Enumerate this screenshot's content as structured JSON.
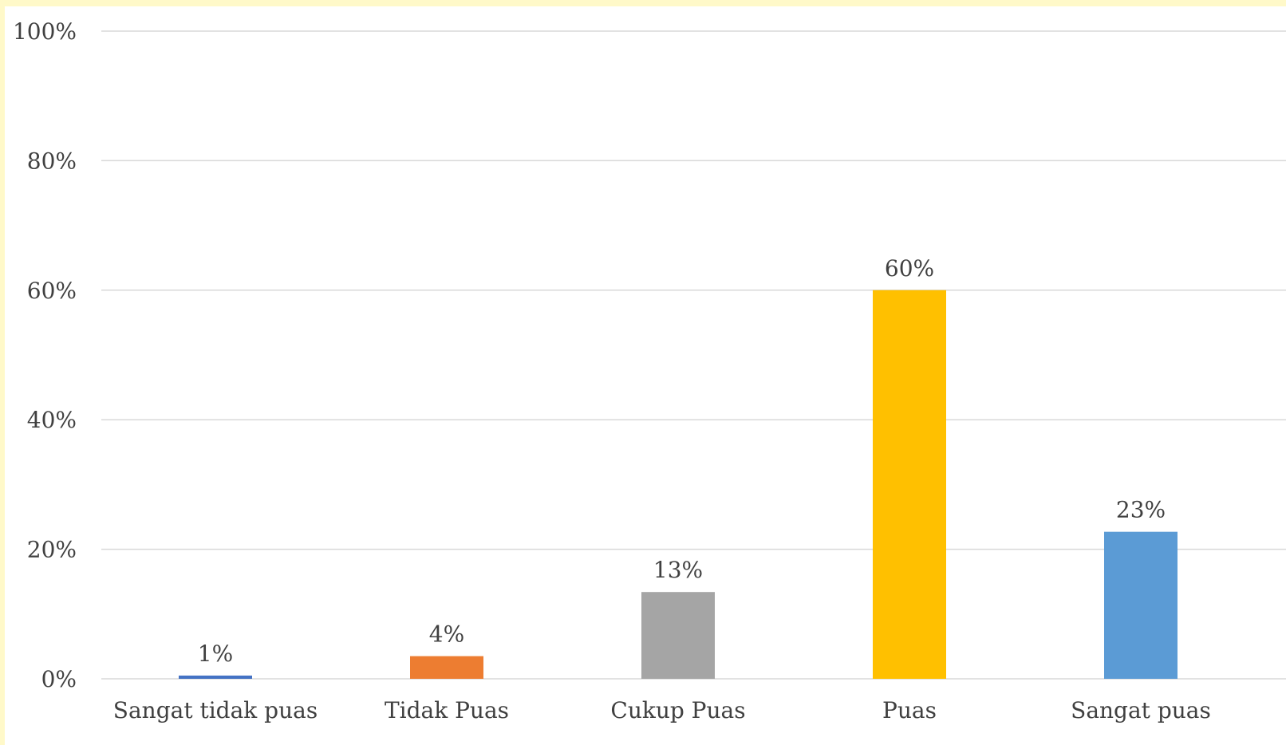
{
  "chart_data": {
    "type": "bar",
    "title": "",
    "xlabel": "",
    "ylabel": "",
    "categories": [
      "Sangat tidak puas",
      "Tidak Puas",
      "Cukup Puas",
      "Puas",
      "Sangat puas"
    ],
    "values": [
      0.5,
      3.5,
      13.4,
      60,
      22.7
    ],
    "data_labels": [
      "1%",
      "4%",
      "13%",
      "60%",
      "23%"
    ],
    "bar_colors": [
      "#4472c4",
      "#ed7d31",
      "#a5a5a5",
      "#ffc000",
      "#5b9bd5"
    ],
    "ylim": [
      0,
      100
    ],
    "yticks": [
      0,
      20,
      40,
      60,
      80,
      100
    ],
    "ytick_labels": [
      "0%",
      "20%",
      "40%",
      "60%",
      "80%",
      "100%"
    ],
    "grid": true,
    "legend": "none"
  },
  "colors": {
    "frame_background": "#fff9c9",
    "gridline": "#d9d9d9",
    "text": "#404040"
  }
}
